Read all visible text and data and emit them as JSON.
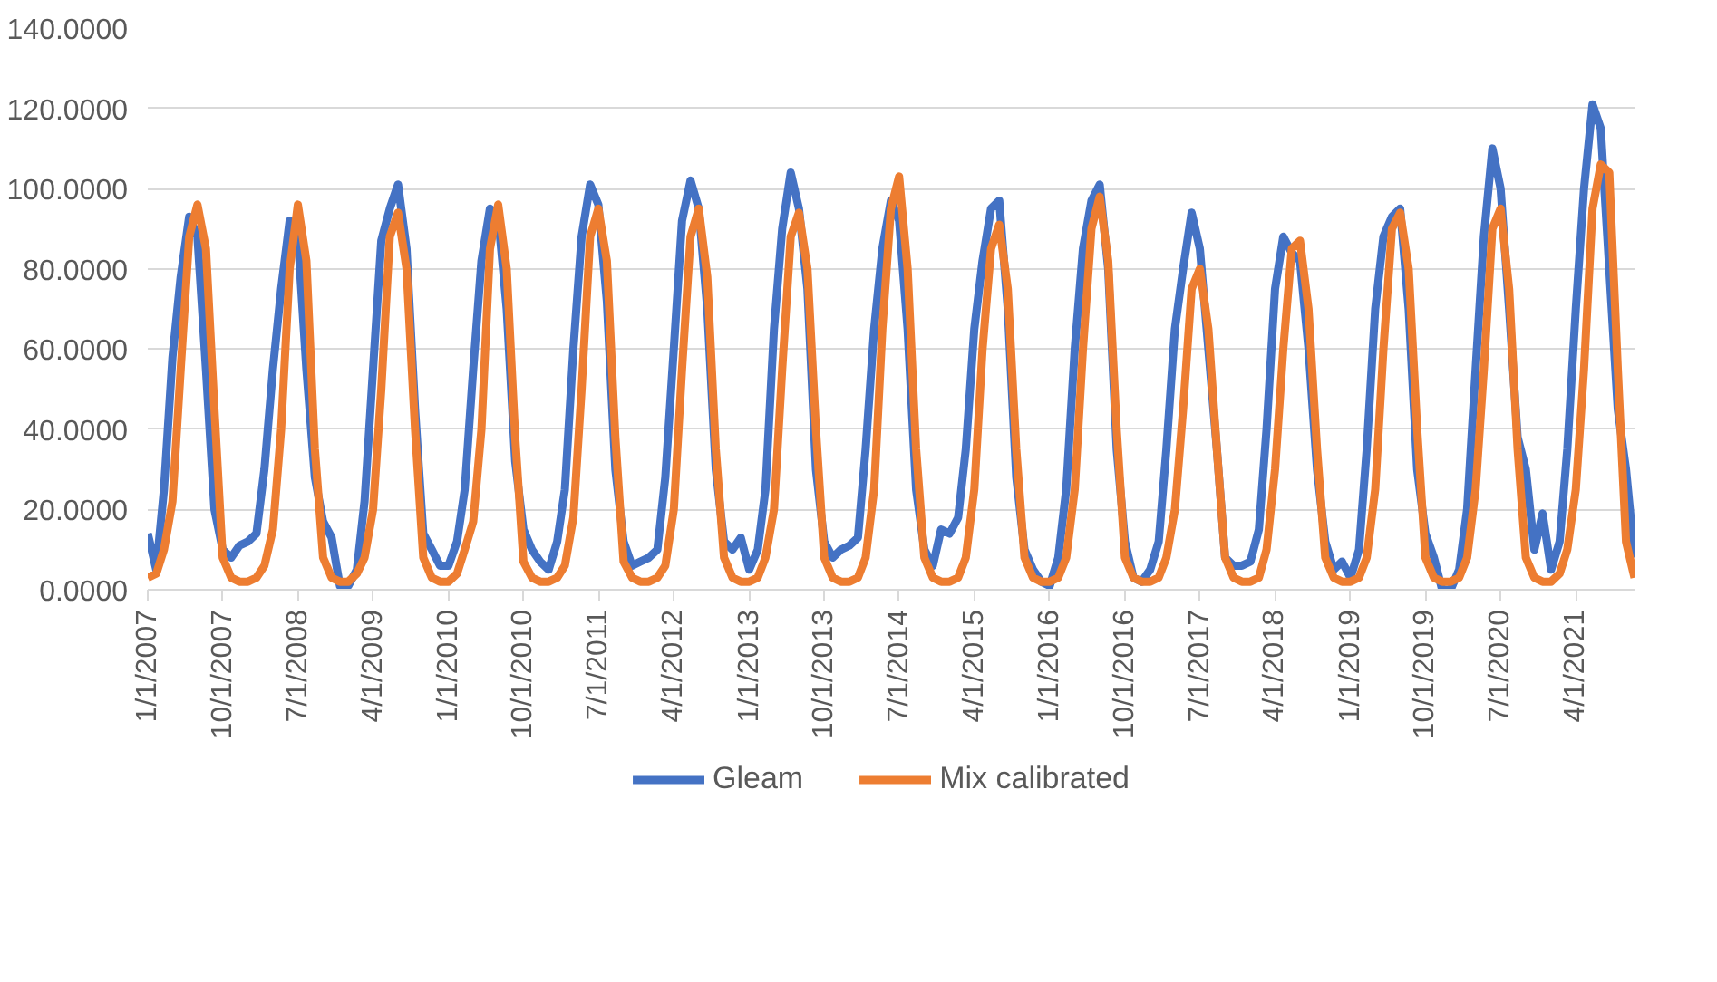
{
  "chart_data": {
    "type": "line",
    "ylim": [
      0,
      140
    ],
    "yticks": [
      {
        "value": 0,
        "label": "0.0000"
      },
      {
        "value": 20,
        "label": "20.0000"
      },
      {
        "value": 40,
        "label": "40.0000"
      },
      {
        "value": 60,
        "label": "60.0000"
      },
      {
        "value": 80,
        "label": "80.0000"
      },
      {
        "value": 100,
        "label": "100.0000"
      },
      {
        "value": 120,
        "label": "120.0000"
      },
      {
        "value": 140,
        "label": "140.0000"
      }
    ],
    "xlim": [
      "2007-01-01",
      "2021-11-01"
    ],
    "xticks": [
      {
        "value": "2007-01-01",
        "label": "1/1/2007"
      },
      {
        "value": "2007-10-01",
        "label": "10/1/2007"
      },
      {
        "value": "2008-07-01",
        "label": "7/1/2008"
      },
      {
        "value": "2009-04-01",
        "label": "4/1/2009"
      },
      {
        "value": "2010-01-01",
        "label": "1/1/2010"
      },
      {
        "value": "2010-10-01",
        "label": "10/1/2010"
      },
      {
        "value": "2011-07-01",
        "label": "7/1/2011"
      },
      {
        "value": "2012-04-01",
        "label": "4/1/2012"
      },
      {
        "value": "2013-01-01",
        "label": "1/1/2013"
      },
      {
        "value": "2013-10-01",
        "label": "10/1/2013"
      },
      {
        "value": "2014-07-01",
        "label": "7/1/2014"
      },
      {
        "value": "2015-04-01",
        "label": "4/1/2015"
      },
      {
        "value": "2016-01-01",
        "label": "1/1/2016"
      },
      {
        "value": "2016-10-01",
        "label": "10/1/2016"
      },
      {
        "value": "2017-07-01",
        "label": "7/1/2017"
      },
      {
        "value": "2018-04-01",
        "label": "4/1/2018"
      },
      {
        "value": "2019-01-01",
        "label": "1/1/2019"
      },
      {
        "value": "2019-10-01",
        "label": "10/1/2019"
      },
      {
        "value": "2020-07-01",
        "label": "7/1/2020"
      },
      {
        "value": "2021-04-01",
        "label": "4/1/2021"
      }
    ],
    "grid": "y",
    "legend": "bottom",
    "marker": "none",
    "line_style": "solid",
    "x": [
      "2007-01",
      "2007-02",
      "2007-03",
      "2007-04",
      "2007-05",
      "2007-06",
      "2007-07",
      "2007-08",
      "2007-09",
      "2007-10",
      "2007-11",
      "2007-12",
      "2008-01",
      "2008-02",
      "2008-03",
      "2008-04",
      "2008-05",
      "2008-06",
      "2008-07",
      "2008-08",
      "2008-09",
      "2008-10",
      "2008-11",
      "2008-12",
      "2009-01",
      "2009-02",
      "2009-03",
      "2009-04",
      "2009-05",
      "2009-06",
      "2009-07",
      "2009-08",
      "2009-09",
      "2009-10",
      "2009-11",
      "2009-12",
      "2010-01",
      "2010-02",
      "2010-03",
      "2010-04",
      "2010-05",
      "2010-06",
      "2010-07",
      "2010-08",
      "2010-09",
      "2010-10",
      "2010-11",
      "2010-12",
      "2011-01",
      "2011-02",
      "2011-03",
      "2011-04",
      "2011-05",
      "2011-06",
      "2011-07",
      "2011-08",
      "2011-09",
      "2011-10",
      "2011-11",
      "2011-12",
      "2012-01",
      "2012-02",
      "2012-03",
      "2012-04",
      "2012-05",
      "2012-06",
      "2012-07",
      "2012-08",
      "2012-09",
      "2012-10",
      "2012-11",
      "2012-12",
      "2013-01",
      "2013-02",
      "2013-03",
      "2013-04",
      "2013-05",
      "2013-06",
      "2013-07",
      "2013-08",
      "2013-09",
      "2013-10",
      "2013-11",
      "2013-12",
      "2014-01",
      "2014-02",
      "2014-03",
      "2014-04",
      "2014-05",
      "2014-06",
      "2014-07",
      "2014-08",
      "2014-09",
      "2014-10",
      "2014-11",
      "2014-12",
      "2015-01",
      "2015-02",
      "2015-03",
      "2015-04",
      "2015-05",
      "2015-06",
      "2015-07",
      "2015-08",
      "2015-09",
      "2015-10",
      "2015-11",
      "2015-12",
      "2016-01",
      "2016-02",
      "2016-03",
      "2016-04",
      "2016-05",
      "2016-06",
      "2016-07",
      "2016-08",
      "2016-09",
      "2016-10",
      "2016-11",
      "2016-12",
      "2017-01",
      "2017-02",
      "2017-03",
      "2017-04",
      "2017-05",
      "2017-06",
      "2017-07",
      "2017-08",
      "2017-09",
      "2017-10",
      "2017-11",
      "2017-12",
      "2018-01",
      "2018-02",
      "2018-03",
      "2018-04",
      "2018-05",
      "2018-06",
      "2018-07",
      "2018-08",
      "2018-09",
      "2018-10",
      "2018-11",
      "2018-12",
      "2019-01",
      "2019-02",
      "2019-03",
      "2019-04",
      "2019-05",
      "2019-06",
      "2019-07",
      "2019-08",
      "2019-09",
      "2019-10",
      "2019-11",
      "2019-12",
      "2020-01",
      "2020-02",
      "2020-03",
      "2020-04",
      "2020-05",
      "2020-06",
      "2020-07",
      "2020-08",
      "2020-09",
      "2020-10",
      "2020-11",
      "2020-12",
      "2021-01",
      "2021-02",
      "2021-03",
      "2021-04",
      "2021-05",
      "2021-06",
      "2021-07",
      "2021-08",
      "2021-09",
      "2021-10",
      "2021-11"
    ],
    "series": [
      {
        "name": "Gleam",
        "color": "#4472c4",
        "values": [
          14,
          5,
          25,
          58,
          78,
          93,
          88,
          55,
          20,
          10,
          8,
          11,
          12,
          14,
          30,
          55,
          75,
          92,
          88,
          55,
          28,
          17,
          13,
          1,
          1,
          5,
          22,
          55,
          87,
          95,
          101,
          85,
          45,
          14,
          10,
          6,
          6,
          12,
          25,
          55,
          82,
          95,
          93,
          70,
          32,
          15,
          10,
          7,
          5,
          12,
          25,
          60,
          88,
          101,
          96,
          72,
          30,
          12,
          6,
          7,
          8,
          10,
          28,
          60,
          92,
          102,
          95,
          70,
          30,
          12,
          10,
          13,
          5,
          10,
          25,
          65,
          90,
          104,
          95,
          75,
          30,
          12,
          8,
          10,
          11,
          13,
          35,
          65,
          85,
          97,
          92,
          65,
          25,
          10,
          6,
          15,
          14,
          18,
          35,
          65,
          82,
          95,
          97,
          70,
          28,
          10,
          5,
          2,
          1,
          8,
          25,
          60,
          85,
          97,
          101,
          80,
          35,
          12,
          3,
          2,
          5,
          12,
          35,
          65,
          80,
          94,
          85,
          60,
          35,
          8,
          6,
          6,
          7,
          15,
          40,
          75,
          88,
          84,
          82,
          60,
          30,
          12,
          5,
          7,
          3,
          10,
          35,
          70,
          88,
          93,
          95,
          70,
          30,
          14,
          8,
          0,
          0,
          5,
          20,
          55,
          88,
          110,
          100,
          70,
          38,
          30,
          10,
          19,
          5,
          12,
          35,
          70,
          100,
          121,
          115,
          80,
          45,
          30,
          8
        ]
      },
      {
        "name": "Mix calibrated",
        "color": "#ed7d31",
        "values": [
          3,
          4,
          10,
          22,
          55,
          88,
          96,
          85,
          45,
          8,
          3,
          2,
          2,
          3,
          6,
          15,
          40,
          80,
          96,
          82,
          35,
          8,
          3,
          2,
          2,
          4,
          8,
          20,
          50,
          88,
          94,
          80,
          40,
          8,
          3,
          2,
          2,
          4,
          10,
          17,
          40,
          85,
          96,
          80,
          38,
          7,
          3,
          2,
          2,
          3,
          6,
          18,
          50,
          88,
          95,
          82,
          38,
          7,
          3,
          2,
          2,
          3,
          6,
          20,
          55,
          88,
          95,
          78,
          35,
          8,
          3,
          2,
          2,
          3,
          8,
          20,
          55,
          88,
          94,
          80,
          40,
          8,
          3,
          2,
          2,
          3,
          8,
          25,
          65,
          95,
          103,
          80,
          35,
          8,
          3,
          2,
          2,
          3,
          8,
          25,
          60,
          85,
          91,
          75,
          35,
          8,
          3,
          2,
          2,
          3,
          8,
          25,
          60,
          90,
          98,
          82,
          40,
          8,
          3,
          2,
          2,
          3,
          8,
          20,
          45,
          75,
          80,
          65,
          35,
          8,
          3,
          2,
          2,
          3,
          10,
          30,
          60,
          85,
          87,
          70,
          35,
          8,
          3,
          2,
          2,
          3,
          8,
          25,
          60,
          90,
          94,
          80,
          40,
          8,
          3,
          2,
          2,
          3,
          8,
          25,
          55,
          90,
          95,
          75,
          35,
          8,
          3,
          2,
          2,
          4,
          10,
          25,
          55,
          95,
          106,
          104,
          55,
          12,
          3
        ]
      }
    ]
  }
}
